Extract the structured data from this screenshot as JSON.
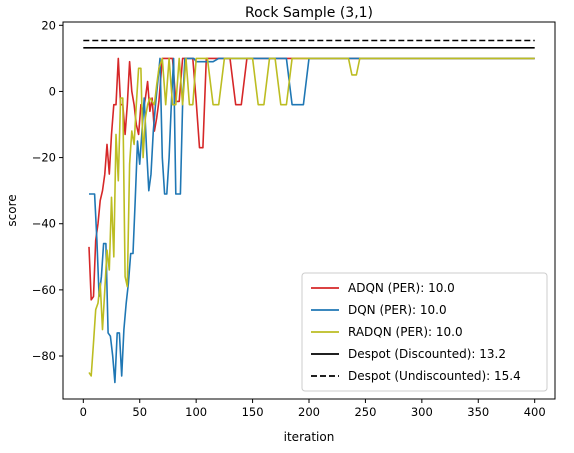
{
  "chart_data": {
    "type": "line",
    "title": "Rock Sample (3,1)",
    "xlabel": "iteration",
    "ylabel": "score",
    "xlim": [
      -18,
      418
    ],
    "ylim": [
      -93,
      21
    ],
    "xticks": [
      0,
      50,
      100,
      150,
      200,
      250,
      300,
      350,
      400
    ],
    "yticks": [
      -80,
      -60,
      -40,
      -20,
      0,
      20
    ],
    "grid": false,
    "legend_position": "lower-right",
    "series": [
      {
        "name": "ADQN (PER): 10.0",
        "color": "#d62728",
        "style": "solid",
        "x": [
          5,
          7,
          9,
          11,
          13,
          15,
          17,
          19,
          21,
          23,
          25,
          27,
          29,
          31,
          33,
          35,
          37,
          39,
          41,
          43,
          45,
          47,
          49,
          51,
          53,
          55,
          57,
          59,
          61,
          63,
          65,
          67,
          70,
          73,
          76,
          79,
          82,
          85,
          88,
          91,
          94,
          97,
          100,
          103,
          106,
          109,
          112,
          115,
          120,
          125,
          130,
          135,
          140,
          145,
          150,
          155,
          160,
          165,
          170,
          175,
          180,
          185,
          190,
          195,
          200,
          205,
          210,
          220,
          240,
          260,
          280,
          300,
          320,
          340,
          360,
          380,
          400
        ],
        "y": [
          -47,
          -63,
          -62,
          -45,
          -40,
          -33,
          -30,
          -25,
          -16,
          -25,
          -13,
          -4,
          -4,
          10,
          -4,
          -4,
          -13,
          -4,
          9,
          0,
          -4,
          -10,
          -13,
          -4,
          -6,
          -2,
          3,
          -6,
          -2,
          -12,
          -8,
          -3,
          10,
          10,
          10,
          10,
          -3,
          -3,
          10,
          10,
          10,
          10,
          -3,
          -17,
          -17,
          10,
          10,
          10,
          10,
          10,
          10,
          -4,
          -4,
          10,
          10,
          10,
          10,
          10,
          10,
          10,
          10,
          10,
          10,
          10,
          10,
          10,
          10,
          10,
          10,
          10,
          10,
          10,
          10,
          10,
          10,
          10,
          10
        ]
      },
      {
        "name": "DQN (PER): 10.0",
        "color": "#1f77b4",
        "style": "solid",
        "x": [
          5,
          8,
          10,
          12,
          14,
          16,
          18,
          20,
          22,
          24,
          26,
          28,
          30,
          32,
          34,
          36,
          38,
          40,
          42,
          44,
          46,
          48,
          50,
          52,
          54,
          56,
          58,
          60,
          62,
          64,
          66,
          68,
          70,
          72,
          74,
          76,
          78,
          80,
          82,
          84,
          86,
          88,
          90,
          92,
          94,
          96,
          98,
          100,
          105,
          110,
          115,
          120,
          125,
          130,
          135,
          140,
          150,
          160,
          170,
          180,
          185,
          190,
          195,
          200,
          240,
          300,
          400
        ],
        "y": [
          -31,
          -31,
          -31,
          -45,
          -62,
          -56,
          -46,
          -46,
          -73,
          -74,
          -80,
          -88,
          -73,
          -73,
          -86,
          -72,
          -64,
          -58,
          -49,
          -49,
          -33,
          -15,
          -22,
          -12,
          -2,
          -17,
          -30,
          -25,
          -12,
          -4,
          3,
          10,
          -20,
          -31,
          -31,
          -20,
          -4,
          10,
          -31,
          -31,
          -31,
          -4,
          10,
          10,
          10,
          10,
          10,
          9,
          9,
          9,
          9,
          10,
          10,
          10,
          10,
          10,
          10,
          10,
          10,
          10,
          -4,
          -4,
          -4,
          10,
          10,
          10,
          10
        ]
      },
      {
        "name": "RADQN (PER): 10.0",
        "color": "#bcbd22",
        "style": "solid",
        "x": [
          5,
          7,
          9,
          11,
          13,
          15,
          17,
          19,
          21,
          23,
          25,
          27,
          29,
          31,
          33,
          35,
          37,
          39,
          41,
          43,
          45,
          47,
          49,
          51,
          53,
          55,
          57,
          59,
          61,
          63,
          65,
          67,
          70,
          73,
          76,
          79,
          82,
          85,
          88,
          91,
          94,
          97,
          100,
          105,
          110,
          115,
          120,
          125,
          130,
          135,
          140,
          145,
          150,
          155,
          160,
          165,
          170,
          175,
          180,
          185,
          190,
          200,
          220,
          235,
          238,
          242,
          245,
          250,
          300,
          400
        ],
        "y": [
          -85,
          -86,
          -76,
          -66,
          -64,
          -58,
          -72,
          -60,
          -48,
          -54,
          -32,
          -50,
          -13,
          -27,
          -2,
          -2,
          -56,
          -59,
          -22,
          -12,
          -16,
          -4,
          7,
          7,
          -20,
          -8,
          -4,
          -2,
          -3,
          -4,
          2,
          7,
          10,
          -4,
          10,
          -4,
          -4,
          10,
          -4,
          10,
          -4,
          -4,
          10,
          10,
          10,
          -4,
          -4,
          10,
          10,
          10,
          10,
          10,
          10,
          -4,
          -4,
          10,
          10,
          -4,
          -4,
          10,
          10,
          10,
          10,
          10,
          5,
          5,
          10,
          10,
          10,
          10
        ]
      },
      {
        "name": "Despot (Discounted): 13.2",
        "color": "#000000",
        "style": "solid",
        "x": [
          0,
          400
        ],
        "y": [
          13.2,
          13.2
        ]
      },
      {
        "name": "Despot (Undiscounted): 15.4",
        "color": "#000000",
        "style": "dashed",
        "x": [
          0,
          400
        ],
        "y": [
          15.4,
          15.4
        ]
      }
    ]
  }
}
